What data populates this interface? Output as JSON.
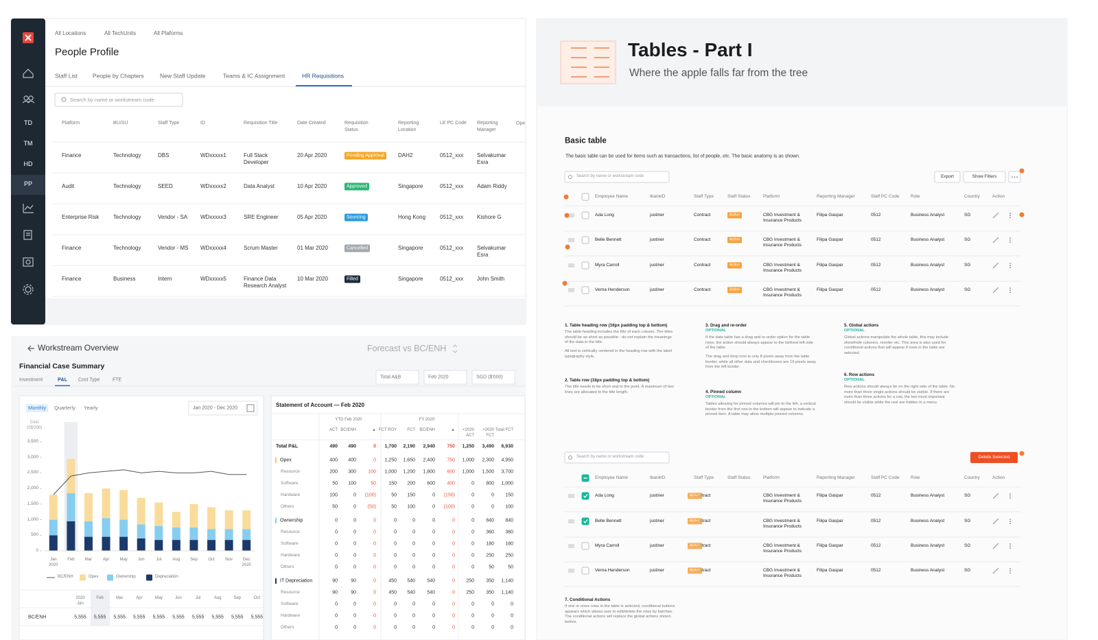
{
  "people_profile": {
    "sidebar": [
      "TD",
      "TM",
      "HD",
      "PP"
    ],
    "filters": [
      "All Locations",
      "All TechUnits",
      "All Plaforms"
    ],
    "title": "People Profile",
    "tabs": [
      "Staff List",
      "People by Chapters",
      "New Staff Update",
      "Teams & IC Assignment",
      "HR Requisitions"
    ],
    "search_placeholder": "Search by name or workstream code",
    "table": {
      "headers": [
        "Platform",
        "BU/SU",
        "Staff Type",
        "ID",
        "Requisition Title",
        "Date Created",
        "Requisition Status",
        "Reporting Location",
        "LE PC Code",
        "Reporting Manager",
        "Ope"
      ],
      "rows": [
        [
          "Finance",
          "Technology",
          "DBS",
          "WDxxxxx1",
          "Full Stack Developer",
          "20 Apr 2020",
          "Pending Approval",
          "DAH2",
          "0512_xxx",
          "Selvakumar Esra"
        ],
        [
          "Audit",
          "Technology",
          "SEED",
          "WDxxxxx2",
          "Data Analyst",
          "10 Apr 2020",
          "Approved",
          "Singapore",
          "0512_xxx",
          "Adam Riddy"
        ],
        [
          "Enterprise Risk",
          "Technology",
          "Vendor - SA",
          "WDxxxxx3",
          "SRE Engineer",
          "05 Apr 2020",
          "Sourcing",
          "Hong Kong",
          "0512_xxx",
          "Kishore G"
        ],
        [
          "Finance",
          "Technology",
          "Vendor - MS",
          "WDxxxxx4",
          "Scrum Master",
          "01 Mar 2020",
          "Cancelled",
          "Singapore",
          "0512_xxx",
          "Selvakumar Esra"
        ],
        [
          "Finance",
          "Business",
          "Intern",
          "WDxxxxx5",
          "Finance Data Research Analyst",
          "10 Mar 2020",
          "Filled",
          "Singapore",
          "0512_xxx",
          "John Smith"
        ]
      ],
      "status_colors": [
        "#f5a623",
        "#2bb673",
        "#2d9cdb",
        "#a3a7ad",
        "#1b2a3a"
      ]
    }
  },
  "workstream": {
    "back_title": "Workstream Overview",
    "view": "Forecast vs BC/ENH",
    "section_title": "Financial Case Summary",
    "tabs": [
      "Investment",
      "P&L",
      "Cost Type",
      "FTE"
    ],
    "filters": [
      "Total A&B",
      "Feb 2020",
      "SGD ($'000)"
    ],
    "periods": [
      "Monthly",
      "Quarterly",
      "Yearly"
    ],
    "date_range": "Jan 2020 - Dec 2020",
    "summary_table": {
      "headers": [
        "2020 Jan",
        "Feb",
        "Mar",
        "Apr",
        "May",
        "Jun",
        "Jul",
        "Aug",
        "Sep",
        "Oct"
      ],
      "rows": [
        {
          "name": "BC/ENH",
          "values": [
            "5,555",
            "5,555",
            "5,555",
            "5,555",
            "5,555",
            "5,555",
            "5,555",
            "5,555",
            "5,555",
            "5,555"
          ]
        }
      ]
    },
    "statement": {
      "title": "Statement of Account — Feb 2020",
      "groups": [
        "YTD Feb 2020",
        "FY 2020"
      ],
      "columns": [
        "ACT",
        "BC/ENH",
        "▲",
        "FCT ROY",
        "FCT",
        "BC/ENH",
        "▲",
        "<2020 ACT",
        ">2020 FCT",
        "Total FCT"
      ],
      "sections": [
        {
          "name": "Total P&L",
          "values": [
            "490",
            "490",
            "0",
            "1,700",
            "2,190",
            "2,940",
            "750",
            "1,250",
            "3,490",
            "6,930"
          ],
          "items": []
        },
        {
          "name": "Opex",
          "values": [
            "400",
            "400",
            "0",
            "1,250",
            "1,650",
            "2,400",
            "750",
            "1,000",
            "2,300",
            "4,950"
          ],
          "items": [
            {
              "name": "Resource",
              "values": [
                "200",
                "300",
                "100",
                "1,000",
                "1,200",
                "1,800",
                "600",
                "1,000",
                "1,500",
                "3,700"
              ]
            },
            {
              "name": "Software",
              "values": [
                "50",
                "100",
                "50",
                "150",
                "200",
                "600",
                "400",
                "0",
                "800",
                "1,000"
              ]
            },
            {
              "name": "Hardware",
              "values": [
                "100",
                "0",
                "(100)",
                "50",
                "150",
                "0",
                "(150)",
                "0",
                "0",
                "150"
              ]
            },
            {
              "name": "Others",
              "values": [
                "50",
                "0",
                "(50)",
                "50",
                "100",
                "0",
                "(100)",
                "0",
                "0",
                "100"
              ]
            }
          ]
        },
        {
          "name": "Ownership",
          "values": [
            "0",
            "0",
            "0",
            "0",
            "0",
            "0",
            "0",
            "0",
            "840",
            "840"
          ],
          "items": [
            {
              "name": "Resource",
              "values": [
                "0",
                "0",
                "0",
                "0",
                "0",
                "0",
                "0",
                "0",
                "360",
                "360"
              ]
            },
            {
              "name": "Software",
              "values": [
                "0",
                "0",
                "0",
                "0",
                "0",
                "0",
                "0",
                "0",
                "180",
                "180"
              ]
            },
            {
              "name": "Hardware",
              "values": [
                "0",
                "0",
                "0",
                "0",
                "0",
                "0",
                "0",
                "0",
                "250",
                "250"
              ]
            },
            {
              "name": "Others",
              "values": [
                "0",
                "0",
                "0",
                "0",
                "0",
                "0",
                "0",
                "0",
                "50",
                "50"
              ]
            }
          ]
        },
        {
          "name": "IT Depreciation",
          "values": [
            "90",
            "90",
            "0",
            "450",
            "540",
            "540",
            "0",
            "250",
            "350",
            "1,140"
          ],
          "items": [
            {
              "name": "Resource",
              "values": [
                "90",
                "90",
                "0",
                "450",
                "540",
                "540",
                "0",
                "250",
                "350",
                "1,140"
              ]
            },
            {
              "name": "Software",
              "values": [
                "0",
                "0",
                "0",
                "0",
                "0",
                "0",
                "0",
                "0",
                "0",
                "0"
              ]
            },
            {
              "name": "Hardware",
              "values": [
                "0",
                "0",
                "0",
                "0",
                "0",
                "0",
                "0",
                "0",
                "0",
                "0"
              ]
            },
            {
              "name": "Others",
              "values": [
                "0",
                "0",
                "0",
                "0",
                "0",
                "0",
                "0",
                "0",
                "0",
                "0"
              ]
            }
          ]
        }
      ]
    }
  },
  "chart_data": {
    "type": "bar",
    "stacked": true,
    "y_label": "Cost (S$'000)",
    "categories": [
      "Jan 2020",
      "Feb",
      "Mar",
      "Apr",
      "May",
      "Jun",
      "Jul",
      "Aug",
      "Sep",
      "Oct",
      "Nov",
      "Dec 2020"
    ],
    "series": [
      {
        "name": "BC/ENH",
        "type": "line",
        "color": "#555555",
        "values": [
          1800,
          2400,
          2500,
          2550,
          2600,
          2500,
          2550,
          2500,
          2500,
          2550,
          2450,
          2450
        ]
      },
      {
        "name": "Opex",
        "color": "#f9dc9c",
        "values": [
          800,
          1100,
          900,
          950,
          950,
          850,
          750,
          500,
          750,
          700,
          600,
          600
        ]
      },
      {
        "name": "Ownership",
        "color": "#86cdf0",
        "values": [
          500,
          900,
          500,
          600,
          550,
          450,
          450,
          400,
          400,
          350,
          350,
          350
        ]
      },
      {
        "name": "Depreciation",
        "color": "#1b3a6b",
        "values": [
          500,
          950,
          450,
          450,
          450,
          400,
          350,
          350,
          350,
          350,
          350,
          350
        ]
      }
    ],
    "ylim": [
      0,
      3500
    ],
    "yticks": [
      0,
      500,
      {
        "value": 1000,
        "label": "1,000"
      },
      {
        "value": 1500,
        "label": "1,500"
      },
      {
        "value": 2000,
        "label": "2,000"
      },
      {
        "value": 2500,
        "label": "2,500"
      },
      {
        "value": 3000,
        "label": "3,000"
      },
      {
        "value": 3500,
        "label": "3,500"
      }
    ],
    "grid": false
  },
  "tables_doc": {
    "title": "Tables - Part I",
    "subtitle": "Where the apple falls far from the tree",
    "section": "Basic table",
    "description": "The basic table can  be used for items such as transactions, list of people, etc. The basic anatomy is as shown.",
    "search_placeholder": "Search by name or workstream code",
    "global_actions": [
      "Export",
      "Show Filters"
    ],
    "conditional_action": "Delete Selected",
    "headers": [
      "Employee Name",
      "tbankID",
      "Staff Type",
      "Staff Status",
      "Platform",
      "Reporting Manager",
      "Staff PC Code",
      "Role",
      "Country",
      "Action"
    ],
    "rows": [
      [
        "Ada Long",
        "justiner",
        "Contract",
        "Active",
        "CBG Investment & Insurance Products",
        "Filipa Gaspar",
        "0512",
        "Business Analyst",
        "SG"
      ],
      [
        "Belle Bennett",
        "justiner",
        "Contract",
        "Active",
        "CBG Investment & Insurance Products",
        "Filipa Gaspar",
        "0512",
        "Business Analyst",
        "SG"
      ],
      [
        "Myra Carroll",
        "justiner",
        "Contract",
        "Active",
        "CBG Investment & Insurance Products",
        "Filipa Gaspar",
        "0512",
        "Business Analyst",
        "SG"
      ],
      [
        "Verna Henderson",
        "justiner",
        "Contract",
        "Active",
        "CBG Investment & Insurance Products",
        "Filipa Gaspar",
        "0512",
        "Business Analyst",
        "SG"
      ]
    ],
    "notes": [
      {
        "title": "1. Table heading row (16px padding top & bottom)",
        "paragraphs": [
          "The table heading includes the title of each column. The titles should be as short as possible - do not explain the meanings of the data in the title.",
          "All text is vertically centered in the heading row with the label typography style."
        ]
      },
      {
        "title": "2. Table row (16px padding top & bottom)",
        "paragraphs": [
          "The title needs to be short and to the point. A maximum of two lines are allocated to the title length."
        ]
      },
      {
        "title": "3. Drag and re-order",
        "tag": "OPTIONAL",
        "paragraphs": [
          "If the data table has a drag and re-order option for the table rows, the action should always appear to the farthest left side of the table.",
          "The drag and drop icon is only 8 pixels away from the table border, while all other data and checkboxes are 16 pixels away from the left border."
        ]
      },
      {
        "title": "4. Pinned column",
        "tag": "OPTIONAL",
        "paragraphs": [
          "Tables allowing for pinned columns will pin to the left, a vertical border from the first row to the bottom will appear to indicate a pinned item. A table may allow multiple pinned columns."
        ]
      },
      {
        "title": "5. Global actions",
        "tag": "OPTIONAL",
        "paragraphs": [
          "Global actions manipulate the whole table, this may include show/hide columns, reorder etc. This area is also used for conditional actions that will appear if rows in the table are selected."
        ]
      },
      {
        "title": "6. Row actions",
        "tag": "OPTIONAL",
        "paragraphs": [
          "Row actions should always be on the right side of the table. No more than three single actions should be visible. If there are more than three actions for a row, the two most important should be visible while the rest are hidden in a menu."
        ]
      },
      {
        "title": "7. Conditional Actions",
        "paragraphs": [
          "If one or more rows in the table is selected, conditional buttons appears which allows user to edit/delete the rows by batches. The conditional actions will replace the global actions shown before."
        ]
      }
    ]
  }
}
